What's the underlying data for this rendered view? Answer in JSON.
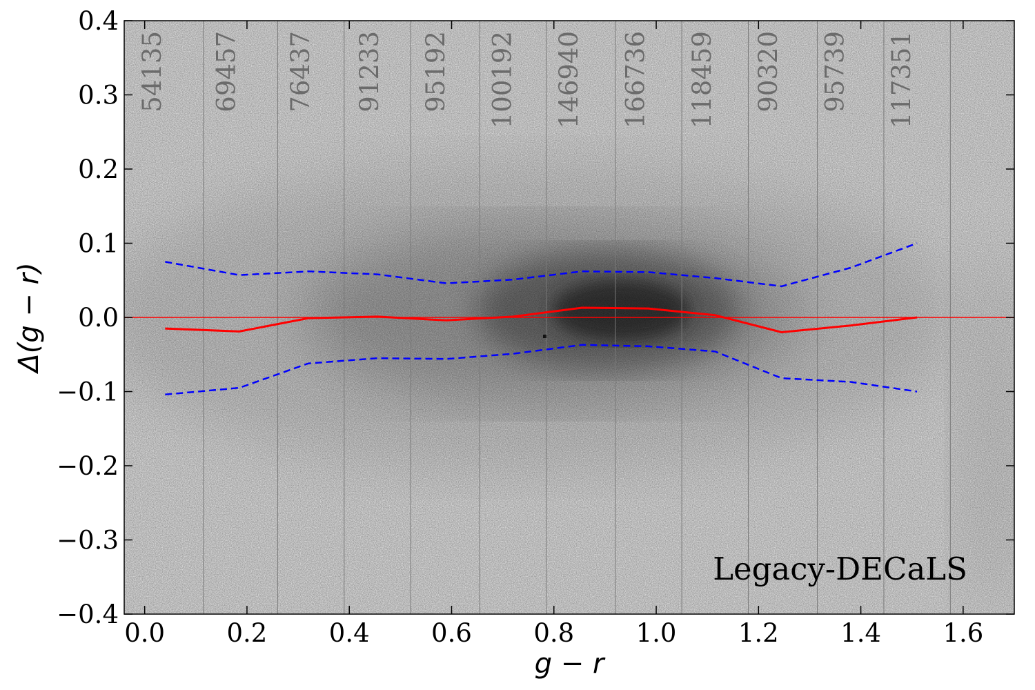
{
  "chart_data": {
    "type": "line",
    "xlabel": "g − r",
    "ylabel": "Δ(g − r)",
    "xlim": [
      -0.04,
      1.7
    ],
    "ylim": [
      -0.4,
      0.4
    ],
    "xticks": [
      "0.0",
      "0.2",
      "0.4",
      "0.6",
      "0.8",
      "1.0",
      "1.2",
      "1.4",
      "1.6"
    ],
    "xtick_values": [
      0.0,
      0.2,
      0.4,
      0.6,
      0.8,
      1.0,
      1.2,
      1.4,
      1.6
    ],
    "yticks": [
      "−0.4",
      "−0.3",
      "−0.2",
      "−0.1",
      "0.0",
      "0.1",
      "0.2",
      "0.3",
      "0.4"
    ],
    "ytick_values": [
      -0.4,
      -0.3,
      -0.2,
      -0.1,
      0.0,
      0.1,
      0.2,
      0.3,
      0.4
    ],
    "grid": false,
    "background": "2D density histogram (grayscale), darkest near g−r ≈ 0.9, Δ ≈ 0",
    "annotation": "Legacy-DECaLS",
    "bin_edges": [
      0.115,
      0.26,
      0.39,
      0.52,
      0.655,
      0.785,
      0.92,
      1.05,
      1.18,
      1.315,
      1.445,
      1.575
    ],
    "bin_counts": [
      {
        "label": "54135",
        "x": 0.015
      },
      {
        "label": "69457",
        "x": 0.16
      },
      {
        "label": "76437",
        "x": 0.305
      },
      {
        "label": "91233",
        "x": 0.44
      },
      {
        "label": "95192",
        "x": 0.57
      },
      {
        "label": "100192",
        "x": 0.7
      },
      {
        "label": "146940",
        "x": 0.83
      },
      {
        "label": "166736",
        "x": 0.96
      },
      {
        "label": "118459",
        "x": 1.09
      },
      {
        "label": "90320",
        "x": 1.22
      },
      {
        "label": "95739",
        "x": 1.35
      },
      {
        "label": "117351",
        "x": 1.48
      }
    ],
    "zero_line": {
      "y": 0.0,
      "color": "#ff0000"
    },
    "series": [
      {
        "role": "median",
        "style": "solid",
        "color": "#ff0000",
        "x": [
          0.04,
          0.185,
          0.32,
          0.455,
          0.59,
          0.72,
          0.855,
          0.985,
          1.115,
          1.245,
          1.38,
          1.51
        ],
        "y": [
          -0.015,
          -0.019,
          -0.001,
          0.001,
          -0.004,
          0.001,
          0.013,
          0.012,
          0.003,
          -0.02,
          -0.011,
          0.0
        ]
      },
      {
        "role": "upper-bound",
        "style": "dashed",
        "color": "#0000ff",
        "x": [
          0.04,
          0.185,
          0.32,
          0.455,
          0.59,
          0.72,
          0.855,
          0.985,
          1.115,
          1.245,
          1.38,
          1.51
        ],
        "y": [
          0.075,
          0.057,
          0.062,
          0.058,
          0.046,
          0.051,
          0.062,
          0.061,
          0.053,
          0.042,
          0.067,
          0.1
        ]
      },
      {
        "role": "lower-bound",
        "style": "dashed",
        "color": "#0000ff",
        "x": [
          0.04,
          0.185,
          0.32,
          0.455,
          0.59,
          0.72,
          0.855,
          0.985,
          1.115,
          1.245,
          1.38,
          1.51
        ],
        "y": [
          -0.104,
          -0.095,
          -0.062,
          -0.055,
          -0.056,
          -0.049,
          -0.037,
          -0.039,
          -0.046,
          -0.082,
          -0.087,
          -0.1
        ]
      }
    ]
  }
}
